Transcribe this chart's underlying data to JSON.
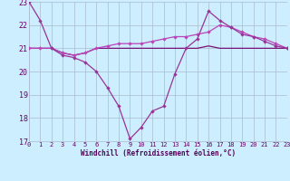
{
  "hours": [
    0,
    1,
    2,
    3,
    4,
    5,
    6,
    7,
    8,
    9,
    10,
    11,
    12,
    13,
    14,
    15,
    16,
    17,
    18,
    19,
    20,
    21,
    22,
    23
  ],
  "line1": [
    23.0,
    22.2,
    21.0,
    20.7,
    20.6,
    20.4,
    20.0,
    19.3,
    18.5,
    17.1,
    17.6,
    18.3,
    18.5,
    19.9,
    21.0,
    21.4,
    22.6,
    22.2,
    21.9,
    21.6,
    21.5,
    21.3,
    21.1,
    21.0
  ],
  "line2": [
    21.0,
    21.0,
    21.0,
    20.8,
    20.7,
    20.8,
    21.0,
    21.1,
    21.2,
    21.2,
    21.2,
    21.3,
    21.4,
    21.5,
    21.5,
    21.6,
    21.7,
    22.0,
    21.9,
    21.7,
    21.5,
    21.4,
    21.2,
    21.0
  ],
  "line3": [
    21.0,
    21.0,
    21.0,
    20.8,
    20.7,
    20.8,
    21.0,
    21.0,
    21.0,
    21.0,
    21.0,
    21.0,
    21.0,
    21.0,
    21.0,
    21.0,
    21.1,
    21.0,
    21.0,
    21.0,
    21.0,
    21.0,
    21.0,
    21.0
  ],
  "line1_color": "#993399",
  "line2_color": "#bb44bb",
  "line3_color": "#771177",
  "marker_color": "#993399",
  "bg_color": "#cceeff",
  "grid_color": "#aabbcc",
  "xlabel": "Windchill (Refroidissement éolien,°C)",
  "xlim": [
    0,
    23
  ],
  "ylim": [
    17,
    23
  ],
  "yticks": [
    17,
    18,
    19,
    20,
    21,
    22,
    23
  ],
  "xticks": [
    0,
    1,
    2,
    3,
    4,
    5,
    6,
    7,
    8,
    9,
    10,
    11,
    12,
    13,
    14,
    15,
    16,
    17,
    18,
    19,
    20,
    21,
    22,
    23
  ]
}
